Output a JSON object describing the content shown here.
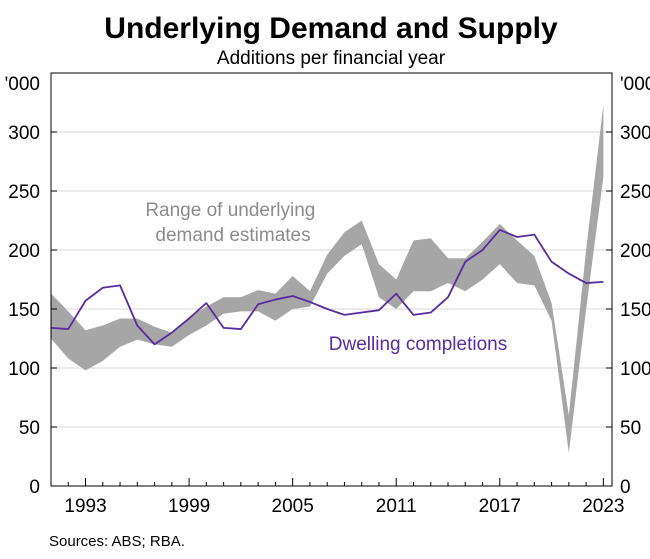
{
  "chart_data": {
    "type": "line",
    "title": "Underlying Demand and Supply",
    "subtitle": "Additions per financial year",
    "y_unit_label": "'000",
    "ylim": [
      0,
      350
    ],
    "y_ticks": [
      0,
      50,
      100,
      150,
      200,
      250,
      300
    ],
    "xlim": [
      1991,
      2023.5
    ],
    "x_ticks": [
      "1993",
      "1999",
      "2005",
      "2011",
      "2017",
      "2023"
    ],
    "grid": true,
    "source": "Sources: ABS; RBA.",
    "series": [
      {
        "name": "Range of underlying demand estimates",
        "kind": "range",
        "color": "#a6a6a6",
        "label_color": "#8c8c8c",
        "x": [
          1991,
          1992,
          1993,
          1994,
          1995,
          1996,
          1997,
          1998,
          1999,
          2000,
          2001,
          2002,
          2003,
          2004,
          2005,
          2006,
          2007,
          2008,
          2009,
          2010,
          2011,
          2012,
          2013,
          2014,
          2015,
          2016,
          2017,
          2018,
          2019,
          2020,
          2021,
          2022,
          2023
        ],
        "low": [
          125,
          108,
          98,
          106,
          118,
          124,
          120,
          118,
          128,
          136,
          146,
          148,
          148,
          140,
          150,
          152,
          180,
          195,
          205,
          160,
          150,
          165,
          165,
          172,
          165,
          175,
          188,
          172,
          170,
          140,
          28,
          150,
          262
        ],
        "high": [
          163,
          148,
          132,
          136,
          142,
          142,
          135,
          130,
          143,
          152,
          160,
          160,
          166,
          163,
          178,
          165,
          196,
          215,
          225,
          188,
          175,
          208,
          210,
          193,
          193,
          207,
          222,
          208,
          195,
          155,
          60,
          200,
          323
        ]
      },
      {
        "name": "Dwelling completions",
        "kind": "line",
        "color": "#5a2c9f",
        "x": [
          1991,
          1992,
          1993,
          1994,
          1995,
          1996,
          1997,
          1998,
          1999,
          2000,
          2001,
          2002,
          2003,
          2004,
          2005,
          2006,
          2007,
          2008,
          2009,
          2010,
          2011,
          2012,
          2013,
          2014,
          2015,
          2016,
          2017,
          2018,
          2019,
          2020,
          2021,
          2022,
          2023
        ],
        "values": [
          134,
          133,
          157,
          168,
          170,
          136,
          120,
          130,
          142,
          155,
          134,
          133,
          154,
          158,
          161,
          156,
          150,
          145,
          147,
          149,
          163,
          145,
          147,
          160,
          190,
          200,
          217,
          211,
          213,
          190,
          180,
          172,
          173
        ]
      }
    ],
    "annotations": {
      "range_label": [
        "Range of underlying",
        "demand estimates"
      ],
      "line_label": "Dwelling completions"
    }
  }
}
